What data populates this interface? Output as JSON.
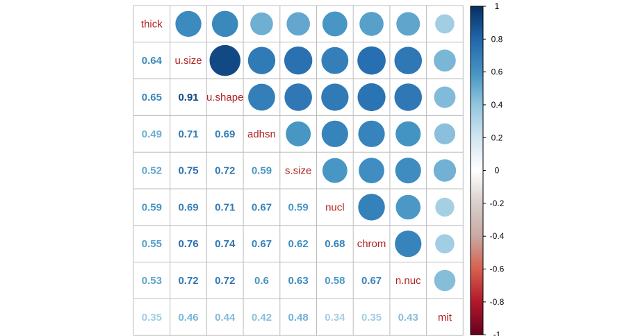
{
  "chart_data": {
    "type": "heatmap",
    "variables": [
      "thick",
      "u.size",
      "u.shape",
      "adhsn",
      "s.size",
      "nucl",
      "chrom",
      "n.nuc",
      "mit"
    ],
    "coefficient_labels": [
      [
        null,
        null,
        null,
        null,
        null,
        null,
        null,
        null,
        null
      ],
      [
        "0.64",
        null,
        null,
        null,
        null,
        null,
        null,
        null,
        null
      ],
      [
        "0.65",
        "0.91",
        null,
        null,
        null,
        null,
        null,
        null,
        null
      ],
      [
        "0.49",
        "0.71",
        "0.69",
        null,
        null,
        null,
        null,
        null,
        null
      ],
      [
        "0.52",
        "0.75",
        "0.72",
        "0.59",
        null,
        null,
        null,
        null,
        null
      ],
      [
        "0.59",
        "0.69",
        "0.71",
        "0.67",
        "0.59",
        null,
        null,
        null,
        null
      ],
      [
        "0.55",
        "0.76",
        "0.74",
        "0.67",
        "0.62",
        "0.68",
        null,
        null,
        null
      ],
      [
        "0.53",
        "0.72",
        "0.72",
        "0.6",
        "0.63",
        "0.58",
        "0.67",
        null,
        null
      ],
      [
        "0.35",
        "0.46",
        "0.44",
        "0.42",
        "0.48",
        "0.34",
        "0.35",
        "0.43",
        null
      ]
    ],
    "matrix": [
      [
        1.0,
        0.64,
        0.65,
        0.49,
        0.52,
        0.59,
        0.55,
        0.53,
        0.35
      ],
      [
        0.64,
        1.0,
        0.91,
        0.71,
        0.75,
        0.69,
        0.76,
        0.72,
        0.46
      ],
      [
        0.65,
        0.91,
        1.0,
        0.69,
        0.72,
        0.71,
        0.74,
        0.72,
        0.44
      ],
      [
        0.49,
        0.71,
        0.69,
        1.0,
        0.59,
        0.67,
        0.67,
        0.6,
        0.42
      ],
      [
        0.52,
        0.75,
        0.72,
        0.59,
        1.0,
        0.59,
        0.62,
        0.63,
        0.48
      ],
      [
        0.59,
        0.69,
        0.71,
        0.67,
        0.59,
        1.0,
        0.68,
        0.58,
        0.34
      ],
      [
        0.55,
        0.76,
        0.74,
        0.67,
        0.62,
        0.68,
        1.0,
        0.67,
        0.35
      ],
      [
        0.53,
        0.72,
        0.72,
        0.6,
        0.63,
        0.58,
        0.67,
        1.0,
        0.43
      ],
      [
        0.35,
        0.46,
        0.44,
        0.42,
        0.48,
        0.34,
        0.35,
        0.43,
        1.0
      ]
    ],
    "lower_triangle": "number",
    "upper_triangle": "circle",
    "diagonal": "variable-name",
    "colorbar": {
      "range": [
        -1,
        1
      ],
      "ticks": [
        "1",
        "0.8",
        "0.6",
        "0.4",
        "0.2",
        "0",
        "-0.2",
        "-0.4",
        "-0.6",
        "-0.8",
        "-1"
      ],
      "position": "right"
    },
    "colors": {
      "scale": [
        "#67001F",
        "#B2182B",
        "#D6604D",
        "#F4A582",
        "#FDDBC7",
        "#FFFFFF",
        "#D1E5F0",
        "#92C5DE",
        "#4393C3",
        "#2166AC",
        "#053061"
      ],
      "label_text": "#b22222",
      "grid": "#bdbdbd"
    }
  }
}
